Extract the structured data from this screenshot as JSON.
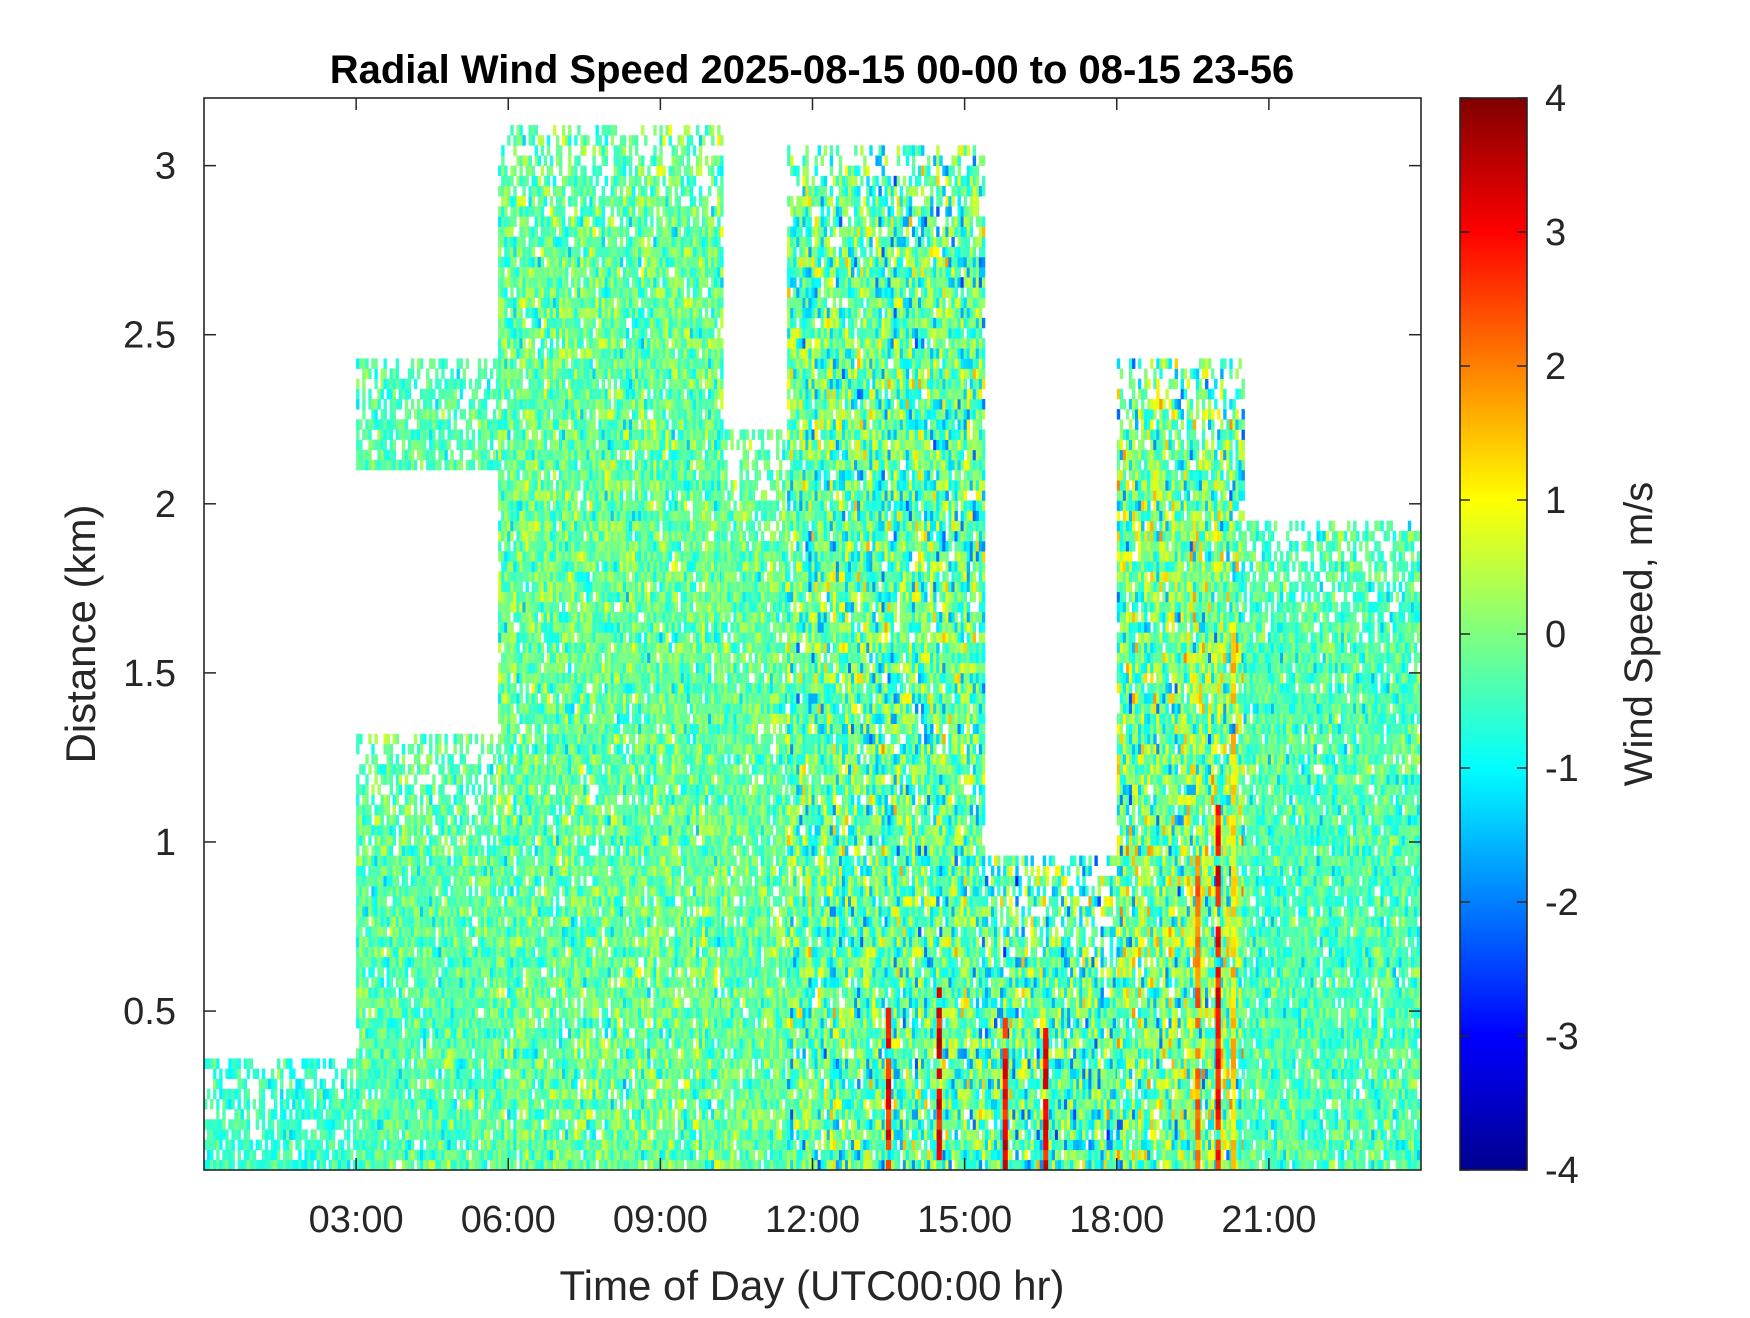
{
  "chart_data": {
    "type": "heatmap",
    "title": "Radial Wind Speed 2025-08-15 00-00 to 08-15 23-56",
    "xlabel": "Time of Day (UTC00:00 hr)",
    "ylabel": "Distance (km)",
    "colorbar_label": "Wind Speed, m/s",
    "xlim": [
      0,
      24
    ],
    "ylim": [
      0.03,
      3.2
    ],
    "clim": [
      -4,
      4
    ],
    "colormap": "jet",
    "x_ticks": [
      {
        "value": 3,
        "label": "03:00"
      },
      {
        "value": 6,
        "label": "06:00"
      },
      {
        "value": 9,
        "label": "09:00"
      },
      {
        "value": 12,
        "label": "12:00"
      },
      {
        "value": 15,
        "label": "15:00"
      },
      {
        "value": 18,
        "label": "18:00"
      },
      {
        "value": 21,
        "label": "21:00"
      }
    ],
    "y_ticks": [
      {
        "value": 0.5,
        "label": "0.5"
      },
      {
        "value": 1,
        "label": "1"
      },
      {
        "value": 1.5,
        "label": "1.5"
      },
      {
        "value": 2,
        "label": "2"
      },
      {
        "value": 2.5,
        "label": "2.5"
      },
      {
        "value": 3,
        "label": "3"
      }
    ],
    "colorbar_ticks": [
      {
        "value": 4,
        "label": "4"
      },
      {
        "value": 3,
        "label": "3"
      },
      {
        "value": 2,
        "label": "2"
      },
      {
        "value": 1,
        "label": "1"
      },
      {
        "value": 0,
        "label": "0"
      },
      {
        "value": -1,
        "label": "-1"
      },
      {
        "value": -2,
        "label": "-2"
      },
      {
        "value": -3,
        "label": "-3"
      },
      {
        "value": -4,
        "label": "-4"
      }
    ],
    "data_coverage": [
      {
        "x_range": [
          0,
          3.0
        ],
        "max_distance_km": 0.35,
        "mean_wind_ms": -0.6,
        "spread_ms": 0.5
      },
      {
        "x_range": [
          3.0,
          5.8
        ],
        "max_distance_km": 1.3,
        "mean_wind_ms": -0.3,
        "spread_ms": 0.6
      },
      {
        "x_range": [
          3.0,
          5.8
        ],
        "min_distance_km": 2.1,
        "max_distance_km": 2.4,
        "mean_wind_ms": -0.4,
        "spread_ms": 0.5
      },
      {
        "x_range": [
          5.8,
          10.2
        ],
        "max_distance_km": 3.1,
        "mean_wind_ms": -0.2,
        "spread_ms": 0.7
      },
      {
        "x_range": [
          10.2,
          11.5
        ],
        "max_distance_km": 2.2,
        "mean_wind_ms": -0.2,
        "spread_ms": 0.6
      },
      {
        "x_range": [
          11.5,
          15.4
        ],
        "max_distance_km": 3.05,
        "mean_wind_ms": -0.3,
        "spread_ms": 1.1
      },
      {
        "x_range": [
          15.4,
          18.0
        ],
        "max_distance_km": 0.95,
        "mean_wind_ms": -0.4,
        "spread_ms": 1.2
      },
      {
        "x_range": [
          18.0,
          20.5
        ],
        "max_distance_km": 2.4,
        "mean_wind_ms": -0.1,
        "spread_ms": 1.2
      },
      {
        "x_range": [
          20.5,
          24.0
        ],
        "max_distance_km": 1.95,
        "mean_wind_ms": -0.4,
        "spread_ms": 0.6
      }
    ],
    "notable_streaks": [
      {
        "time_hr": 13.5,
        "max_distance_km": 0.5,
        "wind_ms": 3.5
      },
      {
        "time_hr": 14.5,
        "max_distance_km": 0.6,
        "wind_ms": 3.6
      },
      {
        "time_hr": 15.8,
        "max_distance_km": 0.5,
        "wind_ms": 3.6
      },
      {
        "time_hr": 16.6,
        "max_distance_km": 0.45,
        "wind_ms": 3.7
      },
      {
        "time_hr": 19.6,
        "max_distance_km": 0.95,
        "wind_ms": 2.6
      },
      {
        "time_hr": 20.0,
        "max_distance_km": 1.1,
        "wind_ms": 3.5
      },
      {
        "time_hr": 20.3,
        "max_distance_km": 1.65,
        "wind_ms": 1.8
      }
    ]
  }
}
